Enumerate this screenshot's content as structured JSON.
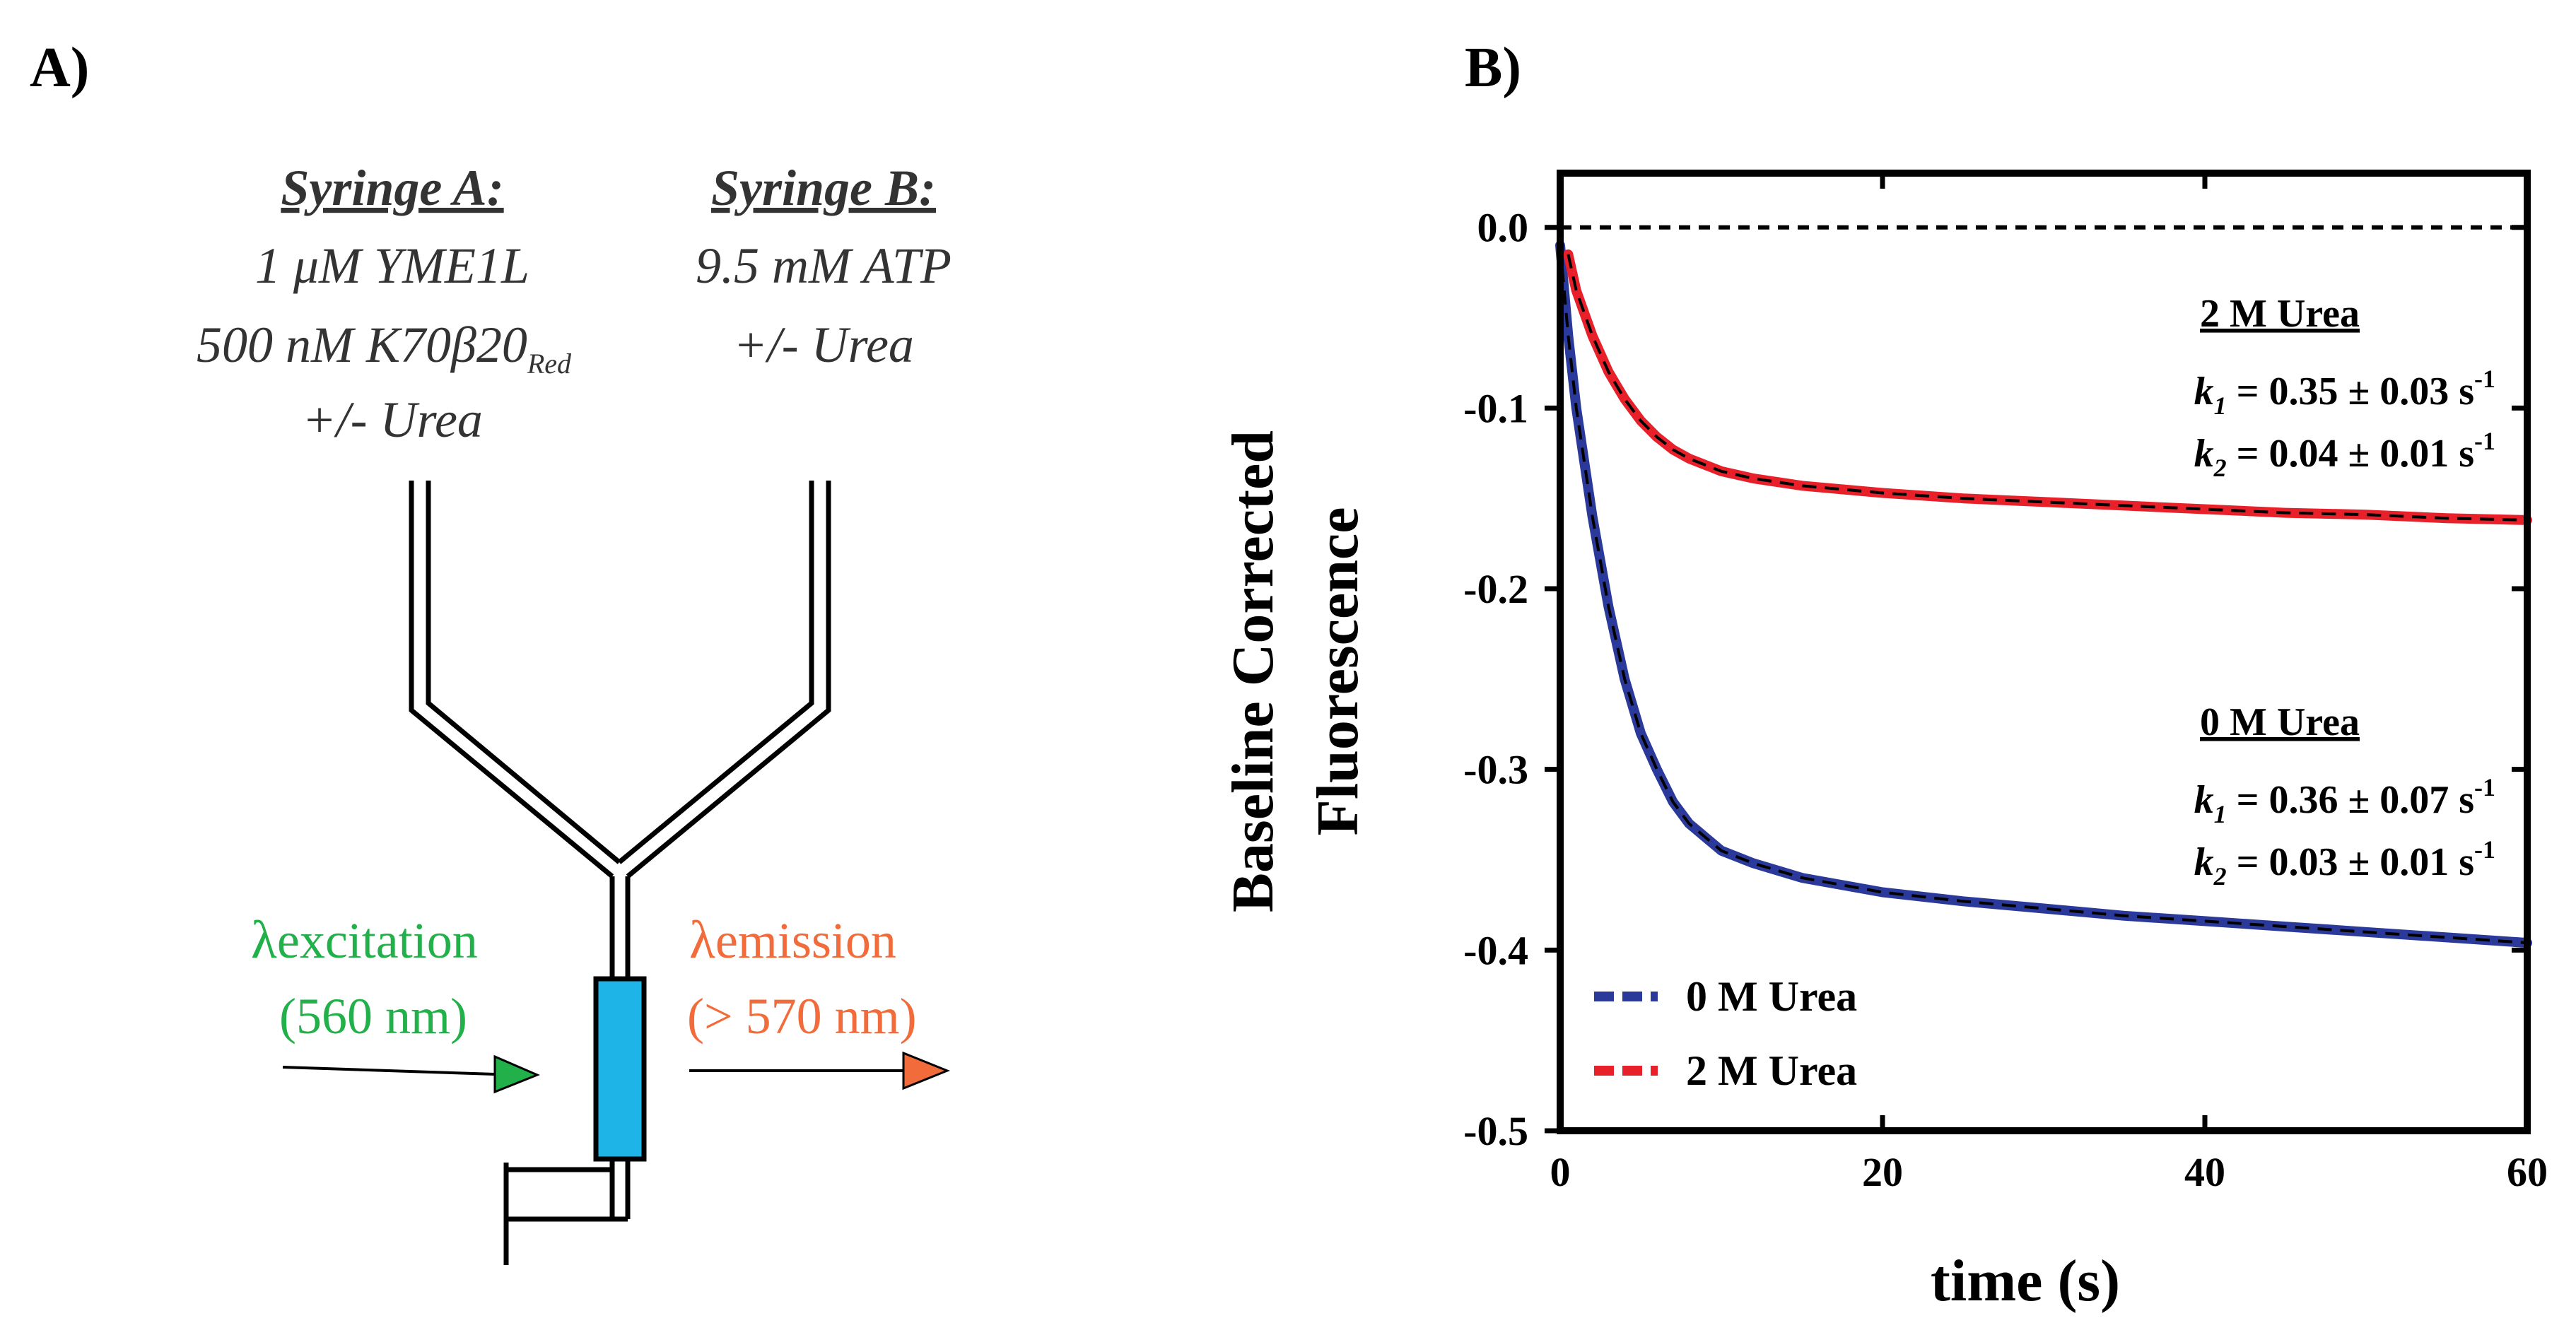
{
  "panel_a": {
    "label": "A)",
    "syringe_a": {
      "title": "Syringe A:",
      "line1": "1 μM YME1L",
      "line2_main": "500 nM K70β20",
      "line2_sub": "Red",
      "line3": "+/-  Urea"
    },
    "syringe_b": {
      "title": "Syringe B:",
      "line1": "9.5 mM ATP",
      "line2": "+/-  Urea"
    },
    "excitation": {
      "symbol": "λ",
      "word": "excitation",
      "value": "(560 nm)",
      "color": "#22b04a"
    },
    "emission": {
      "symbol": "λ",
      "word": "emission",
      "value": "(> 570 nm)",
      "color": "#f26b3a"
    },
    "cell_color": "#1fb4e8"
  },
  "panel_b": {
    "label": "B)",
    "annotations": [
      {
        "title": "2 M Urea",
        "color": "#e8202a",
        "k1_value": " = 0.35 ± 0.03 s",
        "k2_value": " = 0.04 ± 0.01 s"
      },
      {
        "title": "0 M Urea",
        "color": "#2b3a9a",
        "k1_value": " = 0.36 ± 0.07 s",
        "k2_value": " = 0.03 ± 0.01 s"
      }
    ],
    "k_symbol": "k",
    "k1_sub": "1",
    "k2_sub": "2",
    "k_sup": "-1"
  },
  "chart_data": {
    "type": "line",
    "xlabel": "time (s)",
    "ylabel_line1": "Baseline Corrected",
    "ylabel_line2": "Fluorescence",
    "xlim": [
      0,
      60
    ],
    "ylim": [
      -0.5,
      0.03
    ],
    "x_ticks": [
      0,
      20,
      40,
      60
    ],
    "x_tick_labels": [
      "0",
      "20",
      "40",
      "60"
    ],
    "y_ticks": [
      0.0,
      -0.1,
      -0.2,
      -0.3,
      -0.4,
      -0.5
    ],
    "y_tick_labels": [
      "0.0",
      "-0.1",
      "-0.2",
      "-0.3",
      "-0.4",
      "-0.5"
    ],
    "reference_line": 0.0,
    "series": [
      {
        "name": "0 M Urea",
        "color": "#2b3a9a",
        "x": [
          0,
          0.5,
          1,
          2,
          3,
          4,
          5,
          6,
          7,
          8,
          10,
          12,
          15,
          20,
          25,
          30,
          35,
          40,
          45,
          50,
          55,
          60
        ],
        "values": [
          -0.01,
          -0.06,
          -0.1,
          -0.16,
          -0.21,
          -0.25,
          -0.28,
          -0.3,
          -0.318,
          -0.33,
          -0.345,
          -0.352,
          -0.36,
          -0.368,
          -0.373,
          -0.377,
          -0.381,
          -0.384,
          -0.387,
          -0.39,
          -0.393,
          -0.396
        ]
      },
      {
        "name": "2 M Urea",
        "color": "#e8202a",
        "x": [
          0.5,
          1,
          2,
          3,
          4,
          5,
          6,
          7,
          8,
          10,
          12,
          15,
          20,
          25,
          30,
          35,
          40,
          45,
          50,
          55,
          60
        ],
        "values": [
          -0.015,
          -0.035,
          -0.06,
          -0.08,
          -0.095,
          -0.107,
          -0.116,
          -0.123,
          -0.128,
          -0.135,
          -0.139,
          -0.143,
          -0.147,
          -0.15,
          -0.152,
          -0.154,
          -0.156,
          -0.158,
          -0.159,
          -0.161,
          -0.162
        ]
      }
    ],
    "legend": [
      {
        "name": "0 M Urea",
        "color": "#2b3a9a"
      },
      {
        "name": "2 M Urea",
        "color": "#e8202a"
      }
    ],
    "legend_position": "bottom-left"
  }
}
